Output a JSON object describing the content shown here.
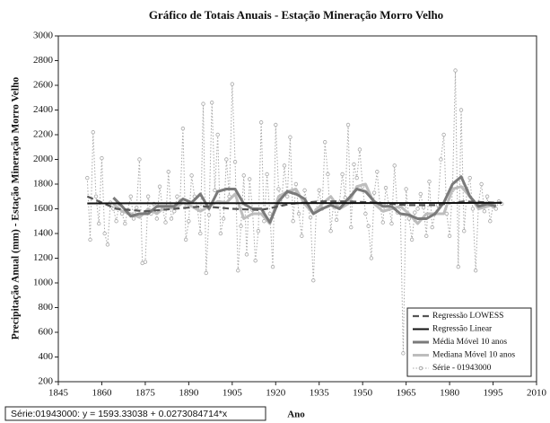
{
  "chart_data": {
    "type": "line",
    "title": "Gráfico de Totais Anuais - Estação Mineração Morro Velho",
    "xlabel": "Ano",
    "ylabel": "Precipitação Anual (mm) - Estação Mineração Morro Velho",
    "annotation": "Série:01943000:   y = 1593.33038 + 0.0273084714*x",
    "xlim": [
      1845,
      2010
    ],
    "xticks": [
      1845,
      1860,
      1875,
      1890,
      1905,
      1920,
      1935,
      1950,
      1965,
      1980,
      1995,
      2010
    ],
    "ylim": [
      200,
      3000
    ],
    "yticks": [
      200,
      400,
      600,
      800,
      1000,
      1200,
      1400,
      1600,
      1800,
      2000,
      2200,
      2400,
      2600,
      2800,
      3000
    ],
    "grid": false,
    "legend": "lower right",
    "series": [
      {
        "name": "Regressão LOWESS",
        "color": "#555555",
        "style": "dashed",
        "x": [
          1855,
          1865,
          1875,
          1885,
          1895,
          1905,
          1915,
          1925,
          1935,
          1945,
          1955,
          1965,
          1975,
          1985,
          1995,
          1998
        ],
        "values": [
          1700,
          1600,
          1580,
          1600,
          1620,
          1600,
          1590,
          1640,
          1660,
          1660,
          1650,
          1630,
          1630,
          1660,
          1650,
          1650
        ]
      },
      {
        "name": "Regressão Linear",
        "color": "#111111",
        "style": "solid",
        "x": [
          1855,
          1998
        ],
        "values": [
          1644,
          1648
        ]
      },
      {
        "name": "Média Móvel 10 anos",
        "color": "#7a7a7a",
        "style": "thick",
        "x": [
          1864,
          1867,
          1870,
          1873,
          1876,
          1879,
          1882,
          1885,
          1888,
          1891,
          1894,
          1897,
          1900,
          1903,
          1906,
          1909,
          1912,
          1915,
          1918,
          1921,
          1924,
          1927,
          1930,
          1933,
          1936,
          1939,
          1942,
          1945,
          1948,
          1951,
          1954,
          1957,
          1960,
          1963,
          1966,
          1969,
          1972,
          1975,
          1978,
          1981,
          1984,
          1987,
          1990,
          1993,
          1996
        ],
        "values": [
          1690,
          1620,
          1540,
          1560,
          1560,
          1620,
          1620,
          1620,
          1680,
          1650,
          1720,
          1600,
          1740,
          1760,
          1760,
          1640,
          1600,
          1600,
          1490,
          1660,
          1740,
          1720,
          1680,
          1560,
          1600,
          1630,
          1600,
          1680,
          1760,
          1740,
          1660,
          1620,
          1620,
          1560,
          1550,
          1520,
          1520,
          1560,
          1650,
          1800,
          1860,
          1700,
          1620,
          1640,
          1620
        ]
      },
      {
        "name": "Mediana Móvel 10 anos",
        "color": "#bdbdbd",
        "style": "thick",
        "x": [
          1864,
          1867,
          1870,
          1873,
          1876,
          1879,
          1882,
          1885,
          1888,
          1891,
          1894,
          1897,
          1900,
          1903,
          1906,
          1909,
          1912,
          1915,
          1918,
          1921,
          1924,
          1927,
          1930,
          1933,
          1936,
          1939,
          1942,
          1945,
          1948,
          1951,
          1954,
          1957,
          1960,
          1963,
          1966,
          1969,
          1972,
          1975,
          1978,
          1981,
          1984,
          1987,
          1990,
          1993,
          1996
        ],
        "values": [
          1640,
          1580,
          1560,
          1530,
          1600,
          1560,
          1620,
          1600,
          1650,
          1620,
          1580,
          1620,
          1660,
          1650,
          1720,
          1520,
          1560,
          1560,
          1480,
          1700,
          1740,
          1760,
          1640,
          1560,
          1640,
          1700,
          1600,
          1640,
          1780,
          1800,
          1640,
          1580,
          1600,
          1620,
          1560,
          1480,
          1560,
          1560,
          1560,
          1760,
          1780,
          1700,
          1600,
          1620,
          1640
        ]
      },
      {
        "name": "Série - 01943000",
        "color": "#a8a8a8",
        "style": "dotted",
        "markers": true,
        "x": [
          1855,
          1856,
          1857,
          1858,
          1859,
          1860,
          1861,
          1862,
          1863,
          1864,
          1865,
          1866,
          1867,
          1868,
          1869,
          1870,
          1871,
          1872,
          1873,
          1874,
          1875,
          1876,
          1877,
          1878,
          1879,
          1880,
          1881,
          1882,
          1883,
          1884,
          1885,
          1886,
          1887,
          1888,
          1889,
          1890,
          1891,
          1892,
          1893,
          1894,
          1895,
          1896,
          1897,
          1898,
          1899,
          1900,
          1901,
          1902,
          1903,
          1904,
          1905,
          1906,
          1907,
          1908,
          1909,
          1910,
          1911,
          1912,
          1913,
          1914,
          1915,
          1916,
          1917,
          1918,
          1919,
          1920,
          1921,
          1922,
          1923,
          1924,
          1925,
          1926,
          1927,
          1928,
          1929,
          1930,
          1931,
          1932,
          1933,
          1934,
          1935,
          1936,
          1937,
          1938,
          1939,
          1940,
          1941,
          1942,
          1943,
          1944,
          1945,
          1946,
          1947,
          1948,
          1949,
          1950,
          1951,
          1952,
          1953,
          1954,
          1955,
          1956,
          1957,
          1958,
          1959,
          1960,
          1961,
          1962,
          1963,
          1964,
          1965,
          1966,
          1967,
          1968,
          1969,
          1970,
          1971,
          1972,
          1973,
          1974,
          1975,
          1976,
          1977,
          1978,
          1979,
          1980,
          1981,
          1982,
          1983,
          1984,
          1985,
          1986,
          1987,
          1988,
          1989,
          1990,
          1991,
          1992,
          1993,
          1994,
          1995,
          1996,
          1997,
          1998
        ],
        "values": [
          1850,
          1350,
          2220,
          1700,
          1480,
          2010,
          1400,
          1310,
          1650,
          1600,
          1500,
          1640,
          1560,
          1480,
          1590,
          1700,
          1520,
          1610,
          2000,
          1160,
          1170,
          1700,
          1560,
          1640,
          1520,
          1780,
          1600,
          1490,
          1900,
          1520,
          1580,
          1700,
          1650,
          2250,
          1350,
          1500,
          1870,
          1700,
          1600,
          1400,
          2450,
          1080,
          1550,
          2460,
          1750,
          2200,
          1400,
          1520,
          2000,
          1700,
          2610,
          1980,
          1100,
          1460,
          1870,
          1230,
          1840,
          1590,
          1180,
          1420,
          2300,
          1500,
          1880,
          1560,
          1130,
          2280,
          1760,
          1640,
          1950,
          1700,
          2180,
          1500,
          1800,
          1560,
          1380,
          1750,
          1620,
          1530,
          1020,
          1590,
          1750,
          1600,
          2140,
          1880,
          1420,
          1650,
          1510,
          1650,
          1880,
          1690,
          2280,
          1450,
          1960,
          1850,
          2080,
          1780,
          1560,
          1460,
          1200,
          1730,
          1900,
          1620,
          1490,
          1770,
          1640,
          1480,
          1950,
          1570,
          1620,
          430,
          1760,
          1520,
          1350,
          1570,
          1600,
          1720,
          1610,
          1380,
          1820,
          1450,
          1560,
          1630,
          2000,
          2200,
          1560,
          1380,
          1750,
          2720,
          1130,
          2400,
          1420,
          1750,
          1850,
          1600,
          1100,
          1650,
          1800,
          1580,
          1700,
          1500,
          1620,
          1600,
          1660,
          1640
        ]
      }
    ]
  }
}
